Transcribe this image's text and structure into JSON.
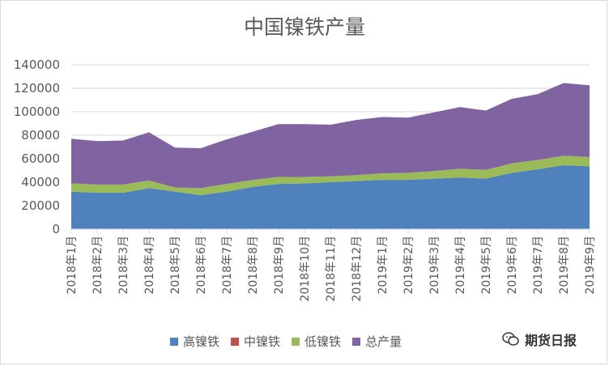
{
  "watermark": {
    "text": "期货日报",
    "icon": "wechat-icon"
  },
  "colors": {
    "high": "#4f81bd",
    "mid": "#c0504d",
    "low": "#9bbb59",
    "total": "#8064a2",
    "grid": "#d9d9d9",
    "text": "#595959"
  },
  "chart_data": {
    "type": "area",
    "title": "中国镍铁产量",
    "xlabel": "",
    "ylabel": "",
    "ylim": [
      0,
      140000
    ],
    "yticks": [
      "0",
      "20000",
      "40000",
      "60000",
      "80000",
      "100000",
      "120000",
      "140000"
    ],
    "grid": true,
    "legend_position": "bottom",
    "stacked": true,
    "categories": [
      "2018年1月",
      "2018年2月",
      "2018年3月",
      "2018年4月",
      "2018年5月",
      "2018年6月",
      "2018年7月",
      "2018年8月",
      "2018年9月",
      "2018年10月",
      "2018年11月",
      "2018年12月",
      "2019年1月",
      "2019年2月",
      "2019年3月",
      "2019年4月",
      "2019年5月",
      "2019年6月",
      "2019年7月",
      "2019年8月",
      "2019年9月"
    ],
    "series": [
      {
        "name": "高镍铁",
        "values": [
          32000,
          31000,
          31000,
          35000,
          32000,
          29000,
          32000,
          36000,
          38500,
          39000,
          40000,
          41000,
          42000,
          42000,
          43000,
          44000,
          43000,
          48000,
          51000,
          54500,
          53500
        ]
      },
      {
        "name": "中镍铁",
        "values": [
          0,
          0,
          0,
          0,
          0,
          0,
          0,
          0,
          0,
          0,
          0,
          0,
          0,
          0,
          0,
          0,
          0,
          0,
          0,
          0,
          0
        ]
      },
      {
        "name": "低镍铁",
        "values": [
          7000,
          7000,
          7000,
          6500,
          3500,
          6000,
          6500,
          6000,
          6000,
          5500,
          5000,
          5000,
          5500,
          6000,
          6500,
          7500,
          7500,
          8000,
          8000,
          8000,
          8000
        ]
      },
      {
        "name": "总产量",
        "values": [
          38000,
          37000,
          37500,
          41000,
          34000,
          34000,
          38000,
          41000,
          45000,
          45000,
          44000,
          47000,
          48000,
          47000,
          50000,
          52500,
          50500,
          55000,
          56000,
          62000,
          61000
        ]
      }
    ]
  }
}
